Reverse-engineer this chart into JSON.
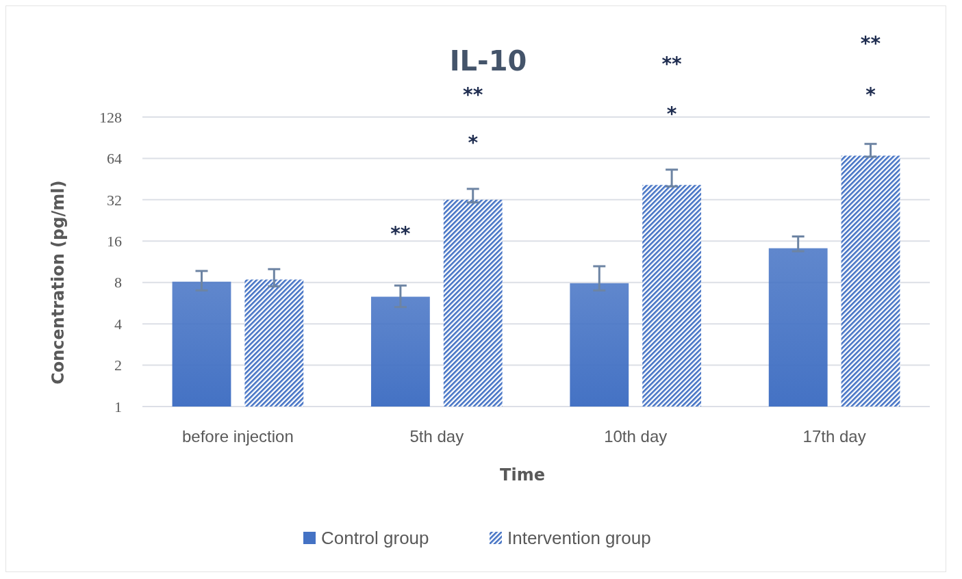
{
  "chart_data": {
    "type": "bar",
    "title": "IL-10",
    "xlabel": "Time",
    "ylabel": "Concentration (pg/ml)",
    "categories": [
      "before injection",
      "5th day",
      "10th day",
      "17th day"
    ],
    "series": [
      {
        "name": "Control group",
        "color": "#4472c4",
        "values": [
          8.1,
          6.3,
          7.9,
          14.2
        ],
        "errors": [
          [
            7.0,
            9.7
          ],
          [
            5.3,
            7.6
          ],
          [
            7.0,
            10.5
          ],
          [
            13.5,
            17.3
          ]
        ]
      },
      {
        "name": "Intervention group",
        "color": "#4472c4",
        "values": [
          8.4,
          32,
          41,
          67
        ],
        "errors": [
          [
            7.5,
            10
          ],
          [
            30.6,
            38.4
          ],
          [
            40,
            53
          ],
          [
            65.8,
            81.6
          ]
        ]
      }
    ],
    "log": "y",
    "ylim": [
      1,
      128
    ],
    "yticks": [
      1,
      2,
      4,
      8,
      16,
      32,
      64,
      128
    ],
    "grid": "y",
    "legend": "bottom",
    "annotations": [
      "**",
      "*",
      "**",
      "*",
      "**",
      "*",
      "**"
    ]
  }
}
